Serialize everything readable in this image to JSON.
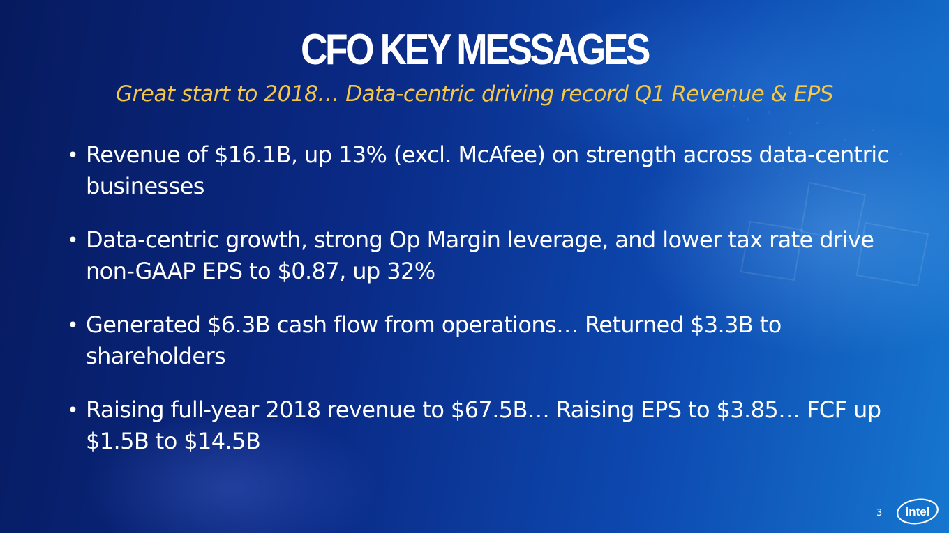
{
  "slide": {
    "title": "CFO KEY MESSAGES",
    "subtitle": "Great start to 2018… Data-centric driving record Q1 Revenue & EPS",
    "bullets": [
      "Revenue of $16.1B, up 13% (excl. McAfee) on strength across data-centric businesses",
      "Data-centric growth, strong Op Margin leverage, and lower tax rate drive non-GAAP EPS to $0.87, up 32%",
      "Generated $6.3B cash flow from operations… Returned $3.3B to shareholders",
      "Raising full-year 2018 revenue to $67.5B… Raising EPS to $3.85… FCF up $1.5B to $14.5B"
    ],
    "bullet_symbol": "•",
    "page_number": "3",
    "logo_text": "intel"
  },
  "colors": {
    "title": "#ffffff",
    "subtitle": "#f5c84a",
    "body_text": "#ffffff",
    "background_dark": "#061a5e",
    "background_light": "#1677cf"
  },
  "icons": {
    "logo": "intel-logo-icon"
  }
}
